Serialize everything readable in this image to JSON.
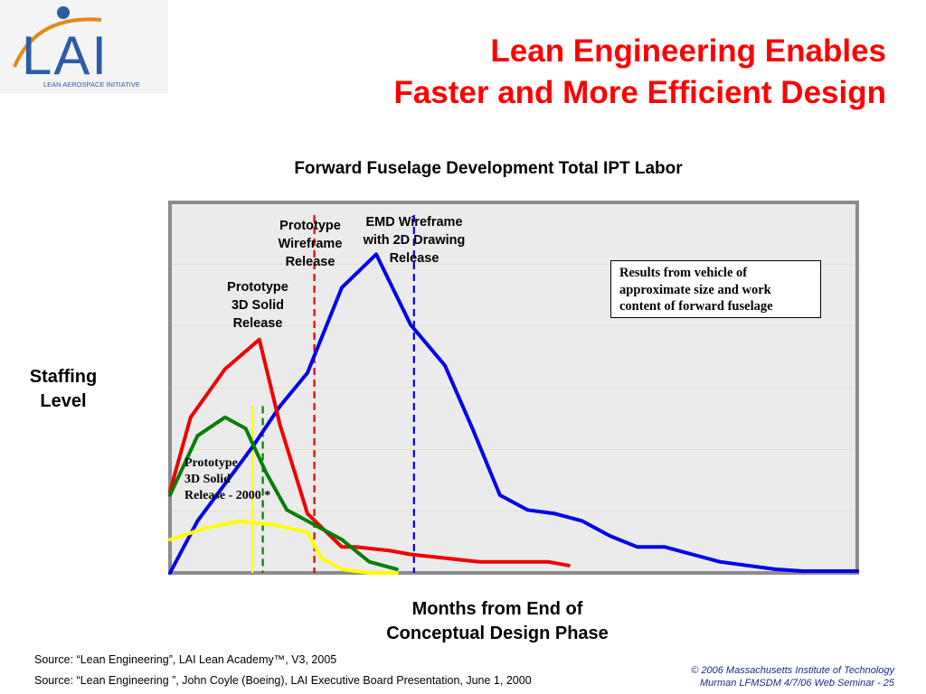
{
  "logo": {
    "letters": "LAI",
    "tagline": "LEAN AEROSPACE INITIATIVE"
  },
  "slide_title": [
    "Lean Engineering Enables",
    "Faster and More Efficient Design"
  ],
  "chart_data": {
    "type": "line",
    "title": "Forward Fuselage Development Total IPT Labor",
    "xlabel": "Months from End of\nConceptual Design Phase",
    "ylabel": "Staffing\nLevel",
    "xlim": [
      0,
      100
    ],
    "ylim": [
      0,
      100
    ],
    "grid": true,
    "series": [
      {
        "color": "#0000ee",
        "x": [
          0,
          4,
          8,
          12,
          16,
          20,
          25,
          30,
          35,
          40,
          44,
          48,
          52,
          56,
          60,
          64,
          68,
          72,
          76,
          80,
          84,
          88,
          92,
          96,
          100
        ],
        "y": [
          0,
          14,
          24,
          34,
          45,
          54,
          77,
          86,
          67,
          56,
          39,
          21,
          17,
          16,
          14,
          10,
          7,
          7,
          5,
          3,
          2,
          1,
          0.5,
          0.5,
          0.5
        ]
      },
      {
        "color": "#ee0000",
        "x": [
          0,
          3,
          8,
          13,
          16,
          20,
          25,
          27,
          32,
          35,
          40,
          45,
          50,
          55,
          58
        ],
        "y": [
          22,
          42,
          55,
          63,
          40,
          16,
          7,
          7,
          6,
          5,
          4,
          3,
          3,
          3,
          2
        ]
      },
      {
        "color": "#008000",
        "x": [
          0,
          4,
          8,
          11,
          14,
          17,
          20,
          25,
          29,
          33
        ],
        "y": [
          21,
          37,
          42,
          39,
          27,
          17,
          14,
          9,
          3,
          1
        ]
      },
      {
        "color": "#ffff00",
        "x": [
          0,
          5,
          10,
          15,
          20,
          22,
          25,
          29,
          33
        ],
        "y": [
          9,
          12,
          14,
          13,
          11,
          4,
          1,
          0,
          0
        ]
      }
    ],
    "markers": [
      {
        "x": 12,
        "color": "#ffff00",
        "style": "solid"
      },
      {
        "x": 13.5,
        "color": "#008000",
        "style": "dashed"
      },
      {
        "x": 21,
        "color": "#ee0000",
        "style": "dashed"
      },
      {
        "x": 35.5,
        "color": "#0000ee",
        "style": "dashed"
      }
    ],
    "annotations": [
      {
        "text": "Prototype\nWireframe\nRelease"
      },
      {
        "text": "EMD Wireframe\nwith 2D Drawing\nRelease"
      },
      {
        "text": "Prototype\n3D Solid\nRelease"
      }
    ],
    "note_box": "Results from vehicle of\napproximate size and work\ncontent of forward fuselage",
    "inset_label": "Prototype\n3D Solid\nRelease - 2000 *"
  },
  "sources": [
    "Source: “Lean Engineering”, LAI Lean Academy™, V3, 2005",
    "Source: “Lean Engineering ”, John Coyle (Boeing),  LAI Executive Board Presentation, June 1, 2000"
  ],
  "copyright": [
    "© 2006 Massachusetts Institute of Technology",
    "Murman LFMSDM 4/7/06 Web Seminar  - 25"
  ]
}
